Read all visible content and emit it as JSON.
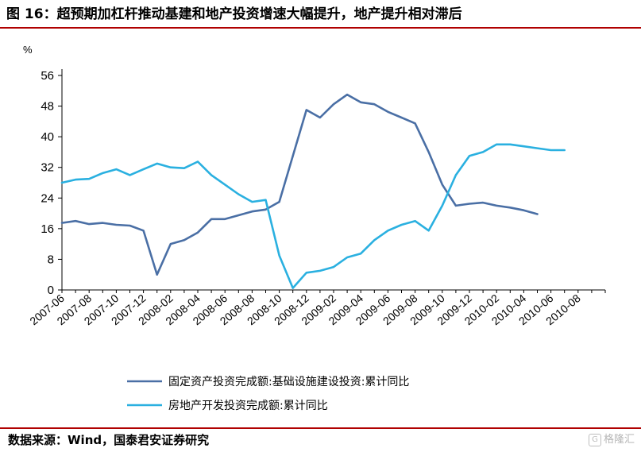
{
  "figure_title": "图 16：超预期加杠杆推动基建和地产投资增速大幅提升，地产提升相对滞后",
  "source": "数据来源：Wind，国泰君安证券研究",
  "watermark": "格隆汇",
  "chart_data": {
    "type": "line",
    "title": "",
    "ylabel": "%",
    "xlabel": "",
    "ylim": [
      0,
      56
    ],
    "yticks": [
      0,
      8,
      16,
      24,
      32,
      40,
      48,
      56
    ],
    "grid": false,
    "legend_position": "bottom",
    "x": [
      "2007-06",
      "2007-07",
      "2007-08",
      "2007-09",
      "2007-10",
      "2007-11",
      "2007-12",
      "2008-01",
      "2008-02",
      "2008-03",
      "2008-04",
      "2008-05",
      "2008-06",
      "2008-07",
      "2008-08",
      "2008-09",
      "2008-10",
      "2008-11",
      "2008-12",
      "2009-01",
      "2009-02",
      "2009-03",
      "2009-04",
      "2009-05",
      "2009-06",
      "2009-07",
      "2009-08",
      "2009-09",
      "2009-10",
      "2009-11",
      "2009-12",
      "2010-01",
      "2010-02",
      "2010-03",
      "2010-04",
      "2010-05",
      "2010-06",
      "2010-07",
      "2010-08",
      "2010-09",
      "2010-10"
    ],
    "xtick_labels": [
      "2007-06",
      "2007-08",
      "2007-10",
      "2007-12",
      "2008-02",
      "2008-04",
      "2008-06",
      "2008-08",
      "2008-10",
      "2008-12",
      "2009-02",
      "2009-04",
      "2009-06",
      "2009-08",
      "2009-10",
      "2009-12",
      "2010-02",
      "2010-04",
      "2010-06",
      "2010-08"
    ],
    "series": [
      {
        "name": "固定资产投资完成额:基础设施建设投资:累计同比",
        "color": "#4a6fa5",
        "values": [
          17.5,
          18.0,
          17.2,
          17.5,
          17.0,
          16.8,
          15.5,
          4.0,
          12.0,
          13.0,
          15.0,
          18.5,
          18.5,
          19.5,
          20.5,
          21.0,
          23.0,
          35.0,
          47.0,
          45.0,
          48.5,
          51.0,
          49.0,
          48.5,
          46.5,
          45.0,
          43.5,
          36.0,
          27.5,
          22.0,
          22.5,
          22.8,
          22.0,
          21.5,
          20.8,
          19.8,
          null,
          null,
          null,
          null,
          null
        ]
      },
      {
        "name": "房地产开发投资完成额:累计同比",
        "color": "#2ab0e0",
        "values": [
          28.0,
          28.8,
          29.0,
          30.5,
          31.5,
          30.0,
          31.5,
          33.0,
          32.0,
          31.8,
          33.5,
          30.0,
          27.5,
          25.0,
          23.0,
          23.5,
          9.0,
          0.5,
          4.5,
          5.0,
          6.0,
          8.5,
          9.5,
          13.0,
          15.5,
          17.0,
          18.0,
          15.5,
          22.0,
          30.0,
          35.0,
          36.0,
          38.0,
          38.0,
          37.5,
          37.0,
          36.5,
          36.5,
          null,
          null,
          null
        ]
      }
    ]
  }
}
